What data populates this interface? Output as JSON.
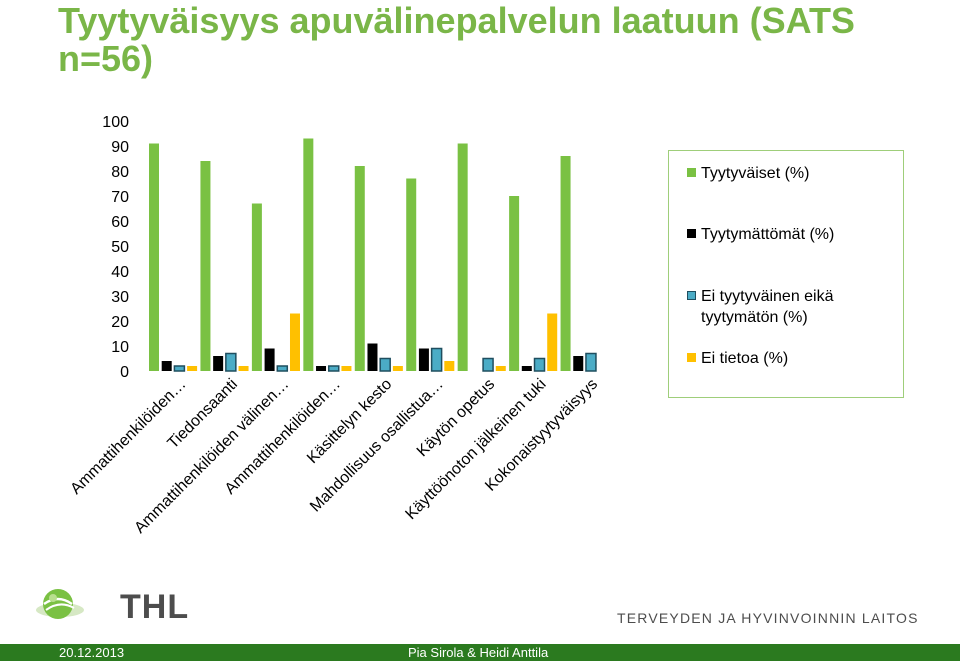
{
  "slide": {
    "title": "Tyytyväisyys apuvälinepalvelun laatuun (SATS n=56)",
    "logo_text": "THL",
    "organization": "TERVEYDEN JA HYVINVOINNIN LAITOS",
    "footer_date": "20.12.2013",
    "footer_authors": "Pia Sirola & Heidi Anttila",
    "footer_color": "#2b7a1f"
  },
  "chart_data": {
    "type": "bar",
    "title": "",
    "xlabel": "",
    "ylabel": "",
    "ylim": [
      0,
      100
    ],
    "yticks": [
      0,
      10,
      20,
      30,
      40,
      50,
      60,
      70,
      80,
      90,
      100
    ],
    "grid": false,
    "legend_position": "right",
    "categories": [
      "Ammattihenkilöiden…",
      "Tiedonsaanti",
      "Ammattihenkilöiden välinen…",
      "Ammattihenkilöiden…",
      "Käsittelyn kesto",
      "Mahdollisuus osallistua…",
      "Käytön opetus",
      "Käyttöönoton jälkeinen tuki",
      "Kokonaistyytyväisyys"
    ],
    "series": [
      {
        "name": "Tyytyväiset  (%)",
        "color": "#7ac143",
        "values": [
          91,
          84,
          67,
          93,
          82,
          77,
          91,
          70,
          86
        ]
      },
      {
        "name": "Tyytymättömät (%)",
        "color": "#000000",
        "values": [
          4,
          6,
          9,
          2,
          11,
          9,
          0,
          2,
          6
        ]
      },
      {
        "name": "Ei tyytyväinen eikä tyytymätön (%)",
        "color": "#4bacc6",
        "values": [
          2,
          7,
          2,
          2,
          5,
          9,
          5,
          5,
          7
        ]
      },
      {
        "name": "Ei tietoa (%)",
        "color": "#ffc000",
        "values": [
          2,
          2,
          23,
          2,
          2,
          4,
          2,
          23,
          0
        ]
      }
    ]
  }
}
